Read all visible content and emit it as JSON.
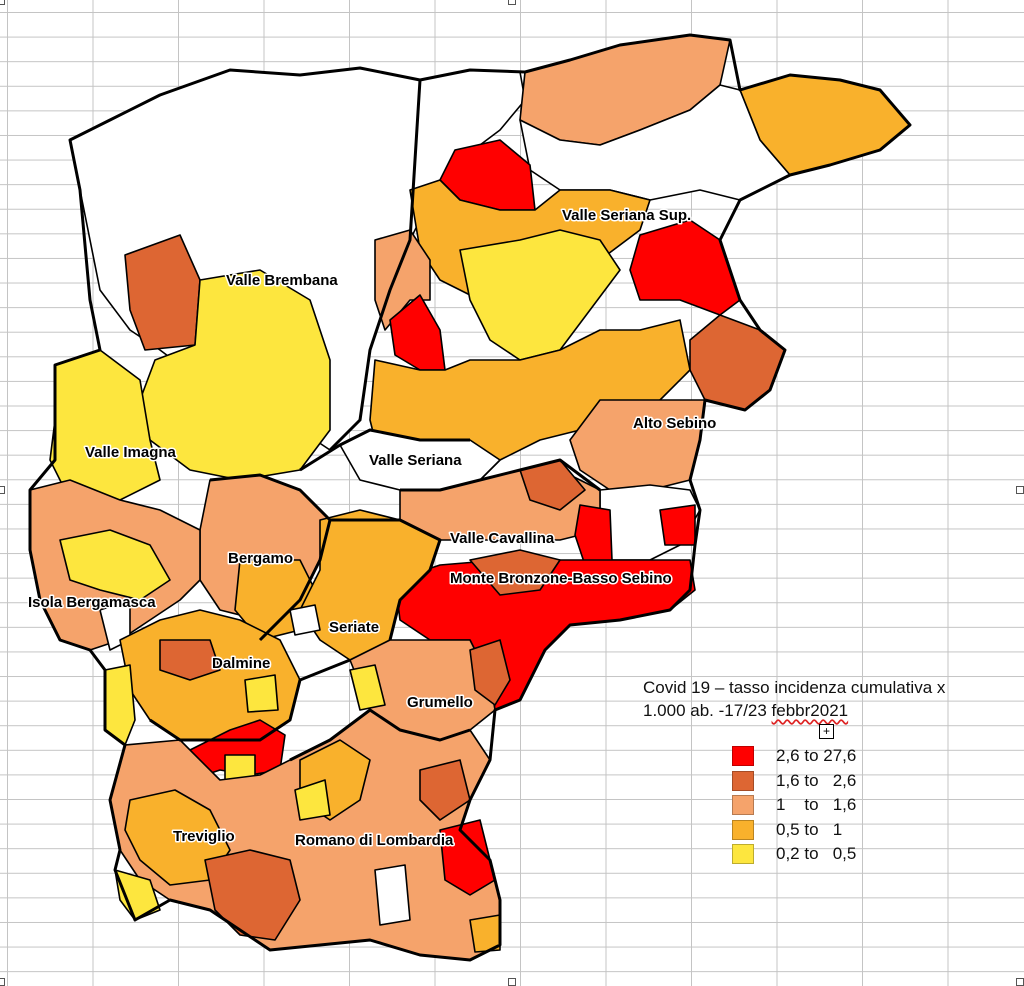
{
  "map": {
    "labels": {
      "valle_seriana_sup": "Valle Seriana Sup.",
      "valle_brembana": "Valle Brembana",
      "alto_sebino": "Alto Sebino",
      "valle_imagna": "Valle Imagna",
      "valle_seriana": "Valle Seriana",
      "valle_cavallina": "Valle Cavallina",
      "bergamo": "Bergamo",
      "monte_bronzone": "Monte Bronzone-Basso Sebino",
      "isola_bergamasca": "Isola Bergamasca",
      "seriate": "Seriate",
      "dalmine": "Dalmine",
      "grumello": "Grumello",
      "treviglio": "Treviglio",
      "romano": "Romano di Lombardia"
    },
    "colors": {
      "red": "#ff0000",
      "dark_orange": "#dd6633",
      "salmon": "#f5a36b",
      "orange": "#f9b12c",
      "yellow": "#fde63e",
      "white": "#ffffff"
    }
  },
  "legend": {
    "title_line1": "Covid 19 – tasso incidenza cumulativa  x",
    "title_line2_prefix": "1.000 ab. -17/23 ",
    "title_line2_underlined": "febbr2021",
    "items": [
      {
        "label": "2,6 to 27,6",
        "color": "#ff0000"
      },
      {
        "label": "1,6 to   2,6",
        "color": "#dd6633"
      },
      {
        "label": "1    to   1,6",
        "color": "#f5a36b"
      },
      {
        "label": "0,5 to   1",
        "color": "#f9b12c"
      },
      {
        "label": "0,2 to   0,5",
        "color": "#fde63e"
      }
    ]
  }
}
